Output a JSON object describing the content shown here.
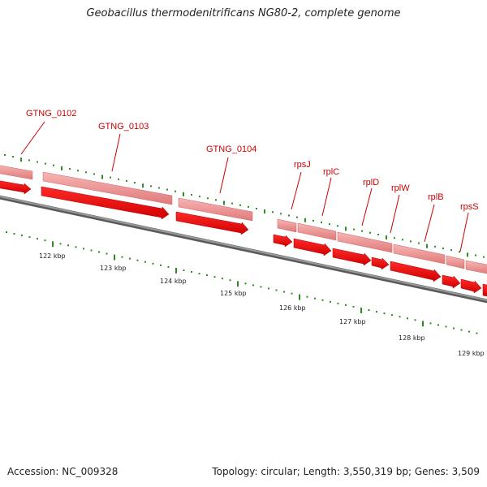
{
  "title": "Geobacillus thermodenitrificans NG80-2, complete genome",
  "footer": {
    "accession": "Accession: NC_009328",
    "topology": "Topology: circular; Length: 3,550,319 bp; Genes: 3,509"
  },
  "colors": {
    "label": "#cc0000",
    "gene_arrow": "#ee0000",
    "gene_band": "#f08a8a",
    "tick": "#2e8b22",
    "backbone": "#777777"
  },
  "scale_labels": [
    "122 kbp",
    "123 kbp",
    "124 kbp",
    "125 kbp",
    "126 kbp",
    "127 kbp",
    "128 kbp",
    "129 kbp"
  ],
  "genes": [
    {
      "name": "GTNG_0102"
    },
    {
      "name": "GTNG_0103"
    },
    {
      "name": "GTNG_0104"
    },
    {
      "name": "rpsJ"
    },
    {
      "name": "rplC"
    },
    {
      "name": "rplD"
    },
    {
      "name": "rplW"
    },
    {
      "name": "rplB"
    },
    {
      "name": "rpsS"
    }
  ]
}
